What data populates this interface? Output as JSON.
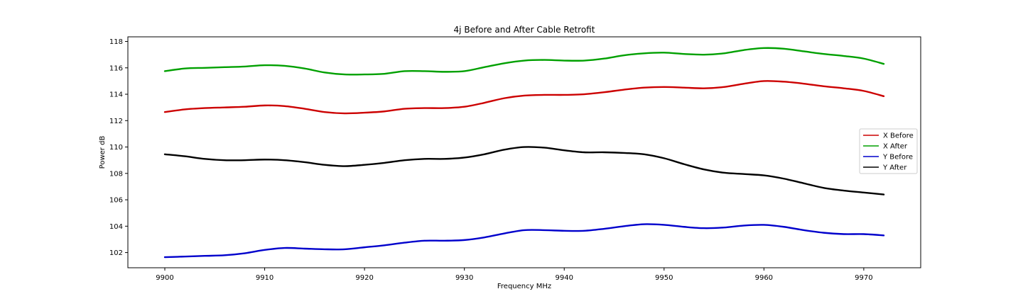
{
  "chart_data": {
    "type": "line",
    "title": "4j Before and After Cable Retrofit",
    "xlabel": "Frequency MHz",
    "ylabel": "Power dB",
    "xlim": [
      9896.3,
      9975.7
    ],
    "ylim": [
      100.85,
      118.35
    ],
    "xticks": [
      9900,
      9910,
      9920,
      9930,
      9940,
      9950,
      9960,
      9970
    ],
    "yticks": [
      102,
      104,
      106,
      108,
      110,
      112,
      114,
      116,
      118
    ],
    "grid": false,
    "legend_position": "center-right",
    "x": [
      9900,
      9902,
      9904,
      9906,
      9908,
      9910,
      9912,
      9914,
      9916,
      9918,
      9920,
      9922,
      9924,
      9926,
      9928,
      9930,
      9932,
      9934,
      9936,
      9938,
      9940,
      9942,
      9944,
      9946,
      9948,
      9950,
      9952,
      9954,
      9956,
      9958,
      9960,
      9962,
      9964,
      9966,
      9968,
      9970,
      9972
    ],
    "series": [
      {
        "name": "X Before",
        "color": "#cc0000",
        "values": [
          112.65,
          112.85,
          112.95,
          113.0,
          113.05,
          113.15,
          113.1,
          112.9,
          112.65,
          112.55,
          112.6,
          112.7,
          112.9,
          112.95,
          112.95,
          113.05,
          113.35,
          113.7,
          113.9,
          113.95,
          113.95,
          114.0,
          114.15,
          114.35,
          114.5,
          114.55,
          114.5,
          114.45,
          114.55,
          114.8,
          115.0,
          114.95,
          114.8,
          114.6,
          114.45,
          114.25,
          113.85
        ]
      },
      {
        "name": "X After",
        "color": "#00a000",
        "values": [
          115.75,
          115.95,
          116.0,
          116.05,
          116.1,
          116.2,
          116.15,
          115.95,
          115.65,
          115.5,
          115.5,
          115.55,
          115.75,
          115.75,
          115.7,
          115.75,
          116.05,
          116.35,
          116.55,
          116.6,
          116.55,
          116.55,
          116.7,
          116.95,
          117.1,
          117.15,
          117.05,
          117.0,
          117.1,
          117.35,
          117.5,
          117.45,
          117.25,
          117.05,
          116.9,
          116.7,
          116.3
        ]
      },
      {
        "name": "Y Before",
        "color": "#0000cc",
        "values": [
          101.65,
          101.7,
          101.75,
          101.8,
          101.95,
          102.2,
          102.35,
          102.3,
          102.25,
          102.25,
          102.4,
          102.55,
          102.75,
          102.9,
          102.9,
          102.95,
          103.15,
          103.45,
          103.7,
          103.7,
          103.65,
          103.65,
          103.8,
          104.0,
          104.15,
          104.1,
          103.95,
          103.85,
          103.9,
          104.05,
          104.1,
          103.95,
          103.7,
          103.5,
          103.4,
          103.4,
          103.3
        ]
      },
      {
        "name": "Y After",
        "color": "#000000",
        "values": [
          109.45,
          109.3,
          109.1,
          109.0,
          109.0,
          109.05,
          109.0,
          108.85,
          108.65,
          108.55,
          108.65,
          108.8,
          109.0,
          109.1,
          109.1,
          109.2,
          109.45,
          109.8,
          110.0,
          109.95,
          109.75,
          109.6,
          109.6,
          109.55,
          109.45,
          109.15,
          108.7,
          108.3,
          108.05,
          107.95,
          107.85,
          107.6,
          107.25,
          106.9,
          106.7,
          106.55,
          106.4
        ]
      }
    ]
  }
}
